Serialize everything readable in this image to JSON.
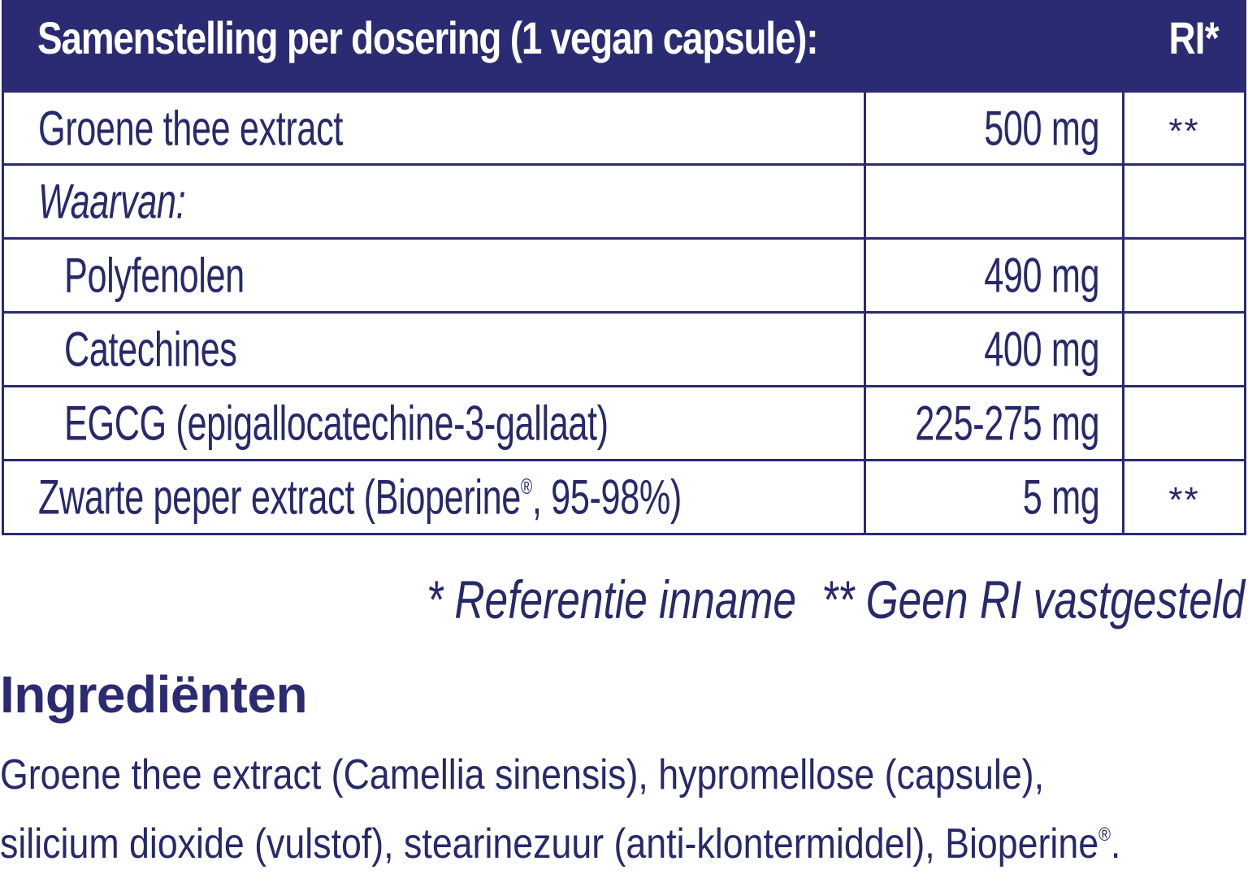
{
  "table": {
    "header_title": "Samenstelling per dosering (1 vegan capsule):",
    "header_ri": "RI*",
    "rows": [
      {
        "name": "Groene thee extract",
        "amount": "500 mg",
        "ri": "**"
      },
      {
        "name": "Waarvan:",
        "amount": "",
        "ri": ""
      },
      {
        "name": "Polyfenolen",
        "amount": "490 mg",
        "ri": ""
      },
      {
        "name": "Catechines",
        "amount": "400 mg",
        "ri": ""
      },
      {
        "name": "EGCG (epigallocatechine-3-gallaat)",
        "amount": "225-275 mg",
        "ri": ""
      },
      {
        "name": "Zwarte peper extract (Bioperine",
        "name_sup": "®",
        "name_tail": ", 95-98%)",
        "amount": "5 mg",
        "ri": "**"
      }
    ]
  },
  "footnotes": {
    "ri": "* Referentie inname",
    "no_ri": "** Geen RI vastgesteld"
  },
  "ingredients": {
    "title": "Ingrediënten",
    "line1": "Groene thee extract (Camellia sinensis), hypromellose (capsule),",
    "line2_a": "silicium dioxide (vulstof), stearinezuur (anti-klontermiddel), Bioperine",
    "line2_sup": "®",
    "line2_b": "."
  },
  "colors": {
    "brand_navy": "#2a2b72",
    "text": "#27296b",
    "background": "#ffffff"
  }
}
